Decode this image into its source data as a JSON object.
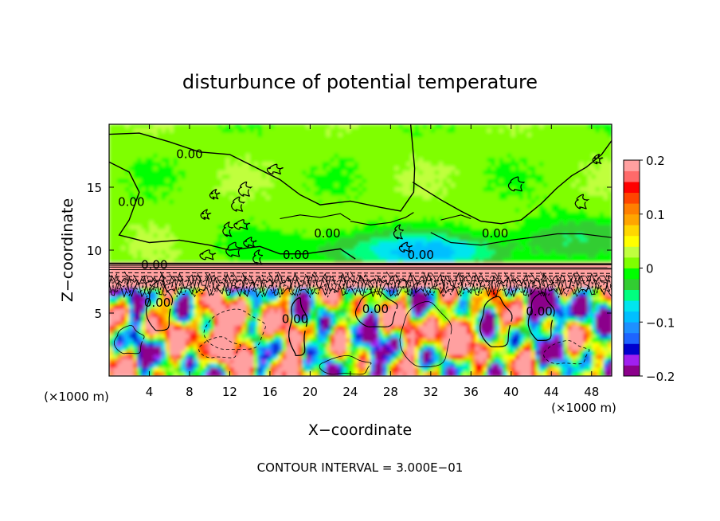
{
  "chart_data": {
    "type": "heatmap",
    "title": "disturbunce of potential temperature",
    "xlabel": "X−coordinate",
    "ylabel": "Z−coordinate",
    "x_unit_left": "(×1000 m)",
    "x_unit_right": "(×1000 m)",
    "footer": "CONTOUR INTERVAL = 3.000E−01",
    "xlim": [
      0,
      50
    ],
    "ylim": [
      0,
      20
    ],
    "x_ticks": [
      4,
      8,
      12,
      16,
      20,
      24,
      28,
      32,
      36,
      40,
      44,
      48
    ],
    "x_tick_labels": [
      "4",
      "8",
      "12",
      "16",
      "20",
      "24",
      "28",
      "32",
      "36",
      "40",
      "44",
      "48"
    ],
    "y_ticks": [
      5,
      10,
      15
    ],
    "y_tick_labels": [
      "5",
      "10",
      "15"
    ],
    "colorbar": {
      "min": -0.2,
      "max": 0.2,
      "ticks": [
        0.2,
        0.1,
        0,
        -0.1,
        -0.2
      ],
      "tick_labels": [
        "0.2",
        "0.1",
        "0",
        "−0.1",
        "−0.2"
      ],
      "colors": [
        "#8b008b",
        "#a020f0",
        "#0000cd",
        "#1e64ff",
        "#1e90ff",
        "#00bfff",
        "#00e5ee",
        "#00ff7f",
        "#32cd32",
        "#00ff00",
        "#7fff00",
        "#c0ff3e",
        "#ffff00",
        "#ffd700",
        "#ffa500",
        "#ff7f00",
        "#ff4500",
        "#ff0000",
        "#ff6a6a",
        "#ffa0a0"
      ]
    },
    "contour_labels": [
      {
        "text": "0.00",
        "x": 8.0,
        "y": 17.3
      },
      {
        "text": "0.00",
        "x": 2.2,
        "y": 13.5
      },
      {
        "text": "0.00",
        "x": 4.5,
        "y": 8.5
      },
      {
        "text": "0.00",
        "x": 18.6,
        "y": 9.3
      },
      {
        "text": "0.00",
        "x": 21.7,
        "y": 11.0
      },
      {
        "text": "0.00",
        "x": 31.0,
        "y": 9.3
      },
      {
        "text": "0.00",
        "x": 38.4,
        "y": 11.0
      },
      {
        "text": "0.00",
        "x": 4.8,
        "y": 5.5
      },
      {
        "text": "0.00",
        "x": 18.5,
        "y": 4.2
      },
      {
        "text": "0.00",
        "x": 26.5,
        "y": 5.0
      },
      {
        "text": "0.00",
        "x": 42.8,
        "y": 4.8
      }
    ]
  }
}
